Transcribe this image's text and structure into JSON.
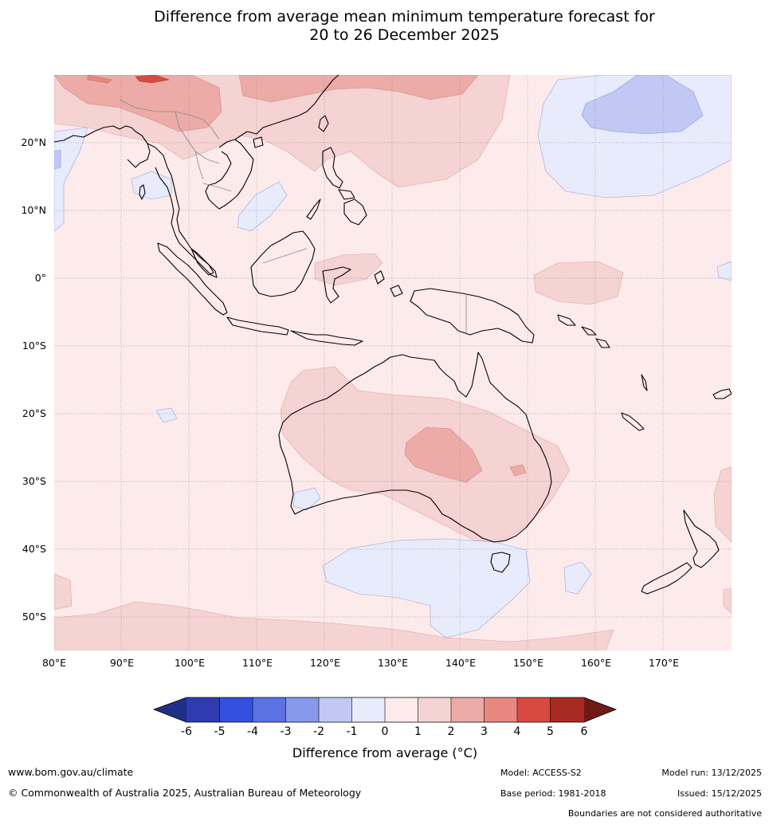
{
  "title": {
    "line1": "Difference from average mean minimum temperature forecast for",
    "line2": "20 to 26 December 2025"
  },
  "map": {
    "lat_labels": [
      "20°N",
      "10°N",
      "0°",
      "10°S",
      "20°S",
      "30°S",
      "40°S",
      "50°S"
    ],
    "lon_labels": [
      "80°E",
      "90°E",
      "100°E",
      "110°E",
      "120°E",
      "130°E",
      "140°E",
      "150°E",
      "160°E",
      "170°E"
    ]
  },
  "legend": {
    "ticks": [
      "-6",
      "-5",
      "-4",
      "-3",
      "-2",
      "-1",
      "0",
      "1",
      "2",
      "3",
      "4",
      "5",
      "6"
    ],
    "colors": [
      "#1f2f86",
      "#2e3cb0",
      "#3450e0",
      "#5a72e2",
      "#8799ea",
      "#c1c8f3",
      "#e7ebfb",
      "#fcebea",
      "#f4d3d2",
      "#ecaba7",
      "#e68780",
      "#d84a3f",
      "#a82a22",
      "#701a16"
    ],
    "label": "Difference from average (°C)"
  },
  "footer": {
    "website": "www.bom.gov.au/climate",
    "copyright": "© Commonwealth of Australia 2025, Australian Bureau of Meteorology",
    "model": "Model: ACCESS-S2",
    "base_period": "Base period: 1981-2018",
    "model_run": "Model run: 13/12/2025",
    "issued": "Issued: 15/12/2025",
    "boundaries_note": "Boundaries are not considered authoritative"
  }
}
